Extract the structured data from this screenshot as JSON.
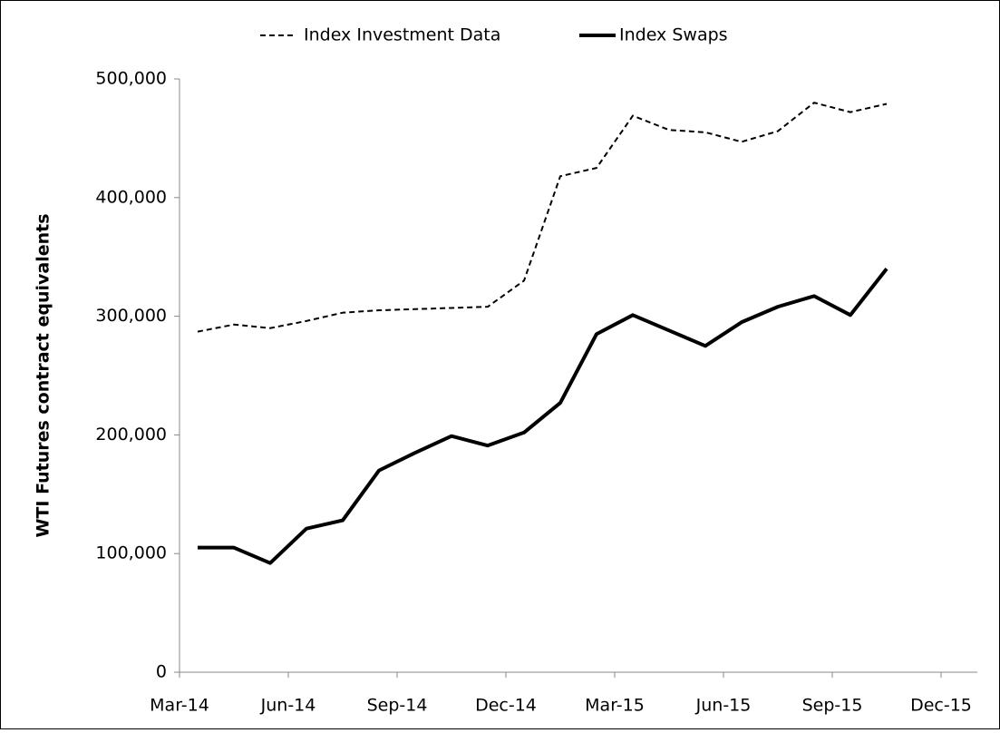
{
  "chart_data": {
    "type": "line",
    "y_label": "WTI Futures contract equivalents",
    "x": [
      "2014-03",
      "2014-04",
      "2014-05",
      "2014-06",
      "2014-07",
      "2014-08",
      "2014-09",
      "2014-10",
      "2014-11",
      "2014-12",
      "2015-01",
      "2015-02",
      "2015-03",
      "2015-04",
      "2015-05",
      "2015-06",
      "2015-07",
      "2015-08",
      "2015-09",
      "2015-10"
    ],
    "series": [
      {
        "name": "Index Investment Data",
        "color": "#000000",
        "dash": "dashed",
        "values": [
          287000,
          293000,
          290000,
          296000,
          303000,
          305000,
          306000,
          307000,
          308000,
          330000,
          418000,
          425000,
          469000,
          457000,
          455000,
          447000,
          456000,
          480000,
          472000,
          479000
        ]
      },
      {
        "name": "Index Swaps",
        "color": "#000000",
        "dash": "solid",
        "values": [
          105000,
          105000,
          92000,
          121000,
          128000,
          170000,
          185000,
          199000,
          191000,
          202000,
          227000,
          285000,
          301000,
          288000,
          275000,
          295000,
          308000,
          317000,
          301000,
          340000
        ]
      }
    ],
    "xlim": [
      "2014-03",
      "2016-01"
    ],
    "xticks": [
      {
        "value": "2014-03",
        "label": "Mar-14"
      },
      {
        "value": "2014-06",
        "label": "Jun-14"
      },
      {
        "value": "2014-09",
        "label": "Sep-14"
      },
      {
        "value": "2014-12",
        "label": "Dec-14"
      },
      {
        "value": "2015-03",
        "label": "Mar-15"
      },
      {
        "value": "2015-06",
        "label": "Jun-15"
      },
      {
        "value": "2015-09",
        "label": "Sep-15"
      },
      {
        "value": "2015-12",
        "label": "Dec-15"
      }
    ],
    "ylim": [
      0,
      500000
    ],
    "yticks": [
      0,
      {
        "value": 100000,
        "label": "100,000"
      },
      {
        "value": 200000,
        "label": "200,000"
      },
      {
        "value": 300000,
        "label": "300,000"
      },
      {
        "value": 400000,
        "label": "400,000"
      },
      {
        "value": 500000,
        "label": "500,000"
      }
    ],
    "grid": false,
    "legend": "top"
  }
}
